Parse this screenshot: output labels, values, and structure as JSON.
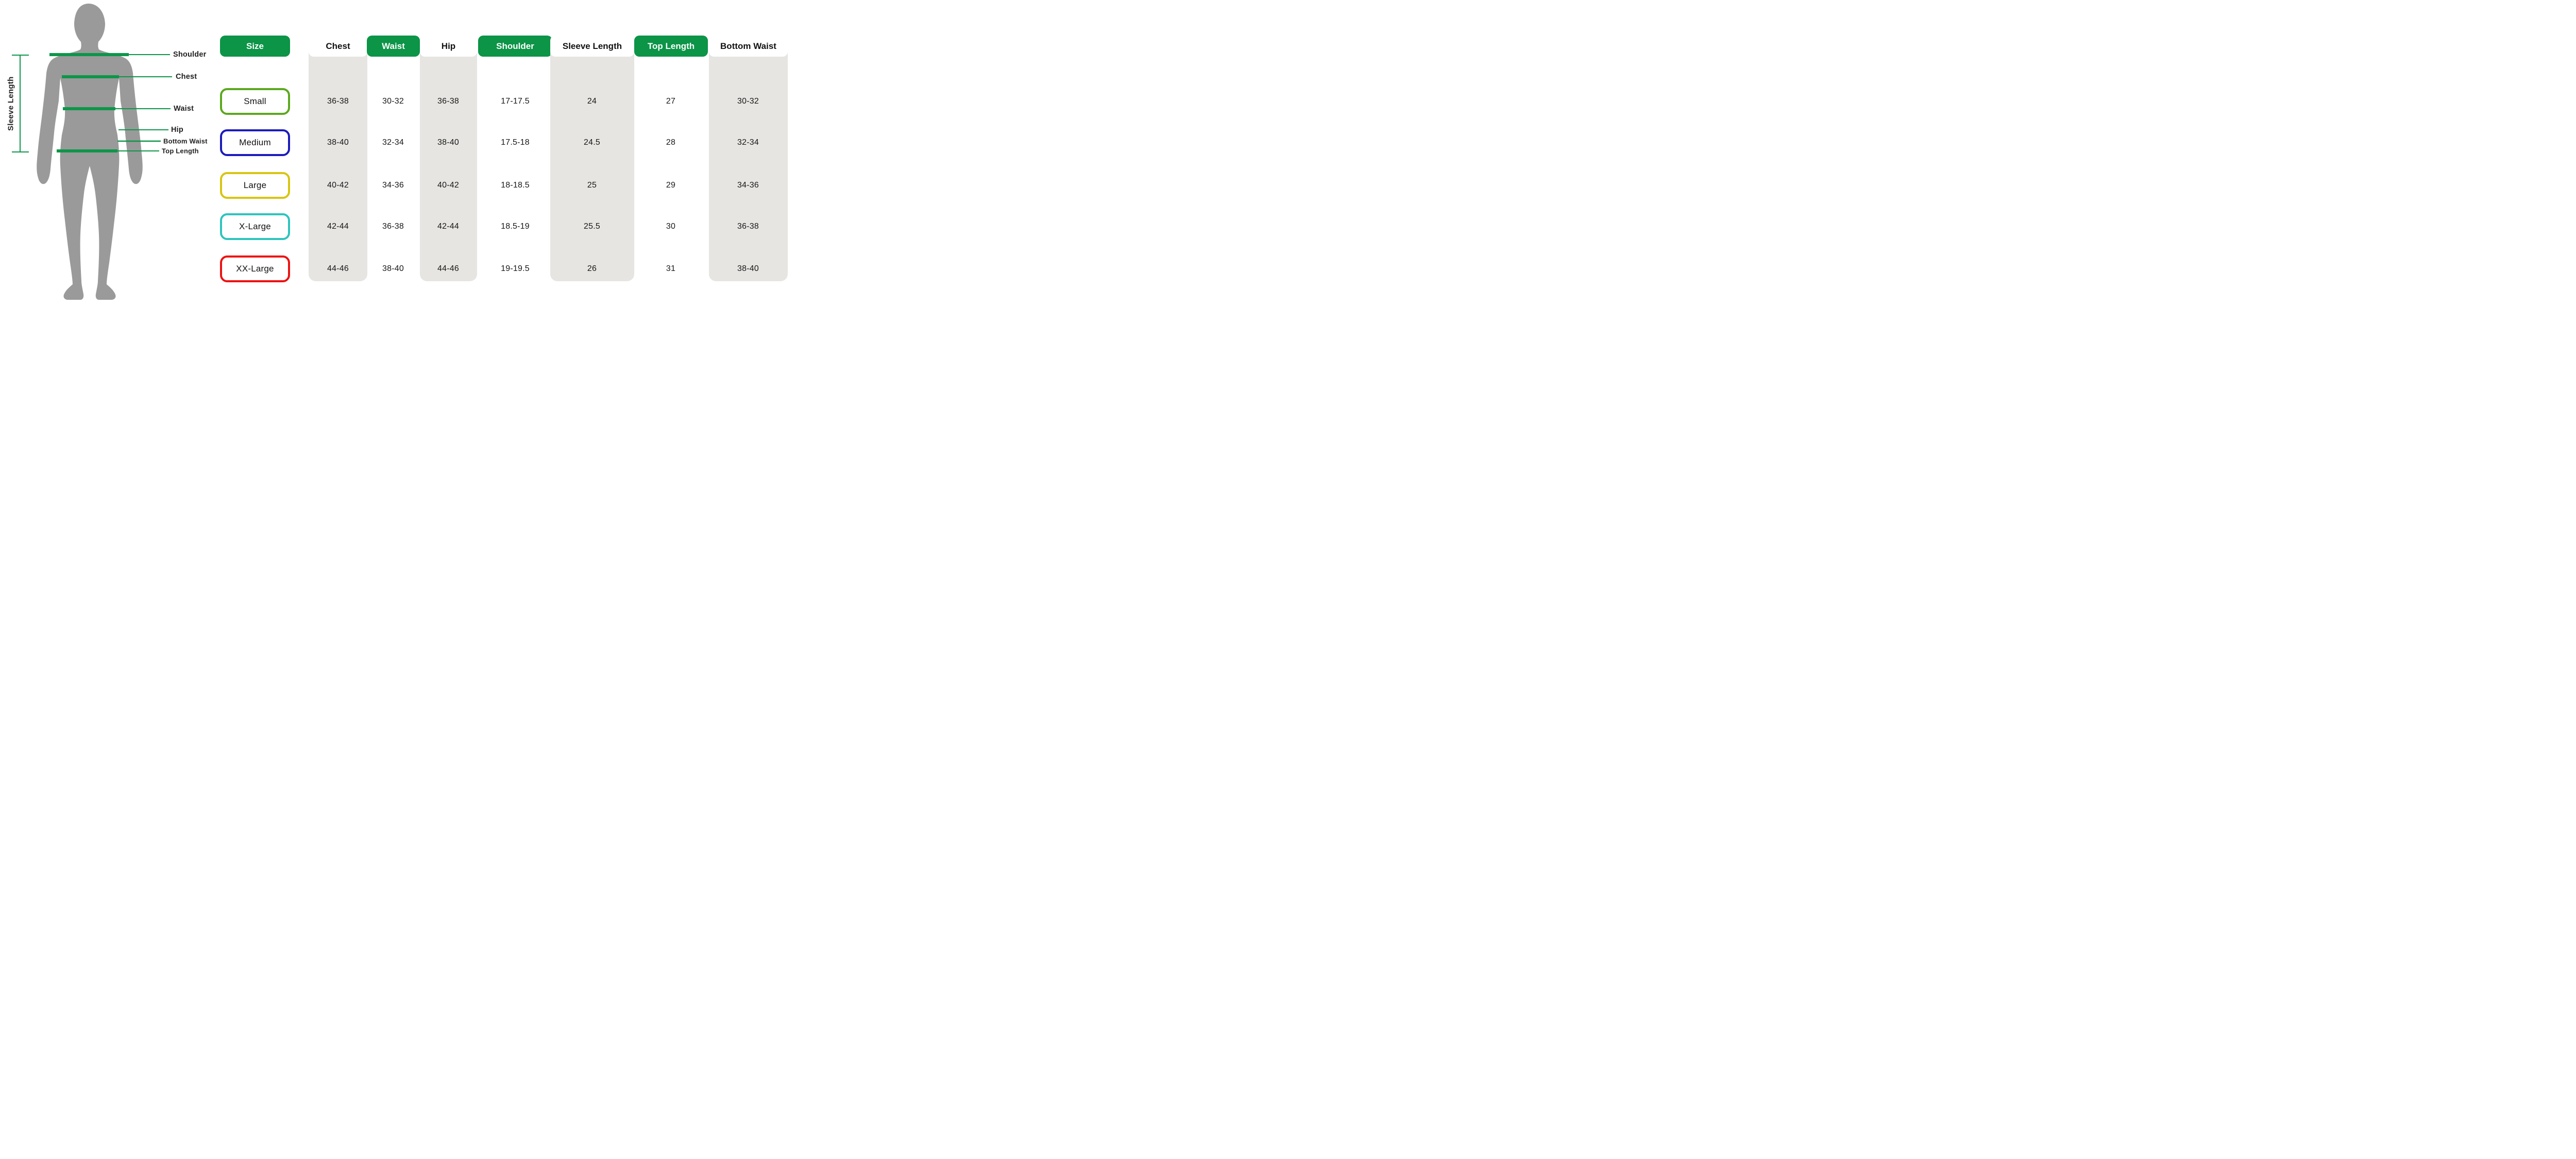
{
  "diagram": {
    "sleeve_length_label": "Sleeve Length",
    "measurement_labels": [
      {
        "id": "shoulder",
        "text": "Shoulder"
      },
      {
        "id": "chest",
        "text": "Chest"
      },
      {
        "id": "waist",
        "text": "Waist"
      },
      {
        "id": "hip",
        "text": "Hip"
      },
      {
        "id": "bottom_waist",
        "text": "Bottom Waist"
      },
      {
        "id": "top_length",
        "text": "Top Length"
      }
    ]
  },
  "table": {
    "columns": [
      {
        "id": "size",
        "label": "Size",
        "header_style": "green"
      },
      {
        "id": "chest",
        "label": "Chest",
        "header_style": "white"
      },
      {
        "id": "waist",
        "label": "Waist",
        "header_style": "green"
      },
      {
        "id": "hip",
        "label": "Hip",
        "header_style": "white"
      },
      {
        "id": "shoulder",
        "label": "Shoulder",
        "header_style": "green"
      },
      {
        "id": "sleeve_length",
        "label": "Sleeve Length",
        "header_style": "white"
      },
      {
        "id": "top_length",
        "label": "Top Length",
        "header_style": "green"
      },
      {
        "id": "bottom_waist",
        "label": "Bottom Waist",
        "header_style": "white"
      }
    ],
    "rows": [
      {
        "size": "Small",
        "border_color": "#5ca81e",
        "values": [
          "36-38",
          "30-32",
          "36-38",
          "17-17.5",
          "24",
          "27",
          "30-32"
        ]
      },
      {
        "size": "Medium",
        "border_color": "#1b1bbd",
        "values": [
          "38-40",
          "32-34",
          "38-40",
          "17.5-18",
          "24.5",
          "28",
          "32-34"
        ]
      },
      {
        "size": "Large",
        "border_color": "#d8c511",
        "values": [
          "40-42",
          "34-36",
          "40-42",
          "18-18.5",
          "25",
          "29",
          "34-36"
        ]
      },
      {
        "size": "X-Large",
        "border_color": "#2ec4be",
        "values": [
          "42-44",
          "36-38",
          "42-44",
          "18.5-19",
          "25.5",
          "30",
          "36-38"
        ]
      },
      {
        "size": "XX-Large",
        "border_color": "#ee1111",
        "values": [
          "44-46",
          "38-40",
          "44-46",
          "19-19.5",
          "26",
          "31",
          "38-40"
        ]
      }
    ]
  },
  "colors": {
    "green": "#0c9447",
    "line_green": "#0d9649",
    "band_gray": "#e6e5e2",
    "silhouette_gray": "#9a9a9a",
    "text_dark": "#1f1f1f"
  },
  "chart_data": {
    "type": "table",
    "title": "Body measurement size chart",
    "columns": [
      "Size",
      "Chest",
      "Waist",
      "Hip",
      "Shoulder",
      "Sleeve Length",
      "Top Length",
      "Bottom Waist"
    ],
    "rows": [
      [
        "Small",
        "36-38",
        "30-32",
        "36-38",
        "17-17.5",
        "24",
        "27",
        "30-32"
      ],
      [
        "Medium",
        "38-40",
        "32-34",
        "38-40",
        "17.5-18",
        "24.5",
        "28",
        "32-34"
      ],
      [
        "Large",
        "40-42",
        "34-36",
        "40-42",
        "18-18.5",
        "25",
        "29",
        "34-36"
      ],
      [
        "X-Large",
        "42-44",
        "36-38",
        "42-44",
        "18.5-19",
        "25.5",
        "30",
        "36-38"
      ],
      [
        "XX-Large",
        "44-46",
        "38-40",
        "44-46",
        "19-19.5",
        "26",
        "31",
        "38-40"
      ]
    ]
  }
}
